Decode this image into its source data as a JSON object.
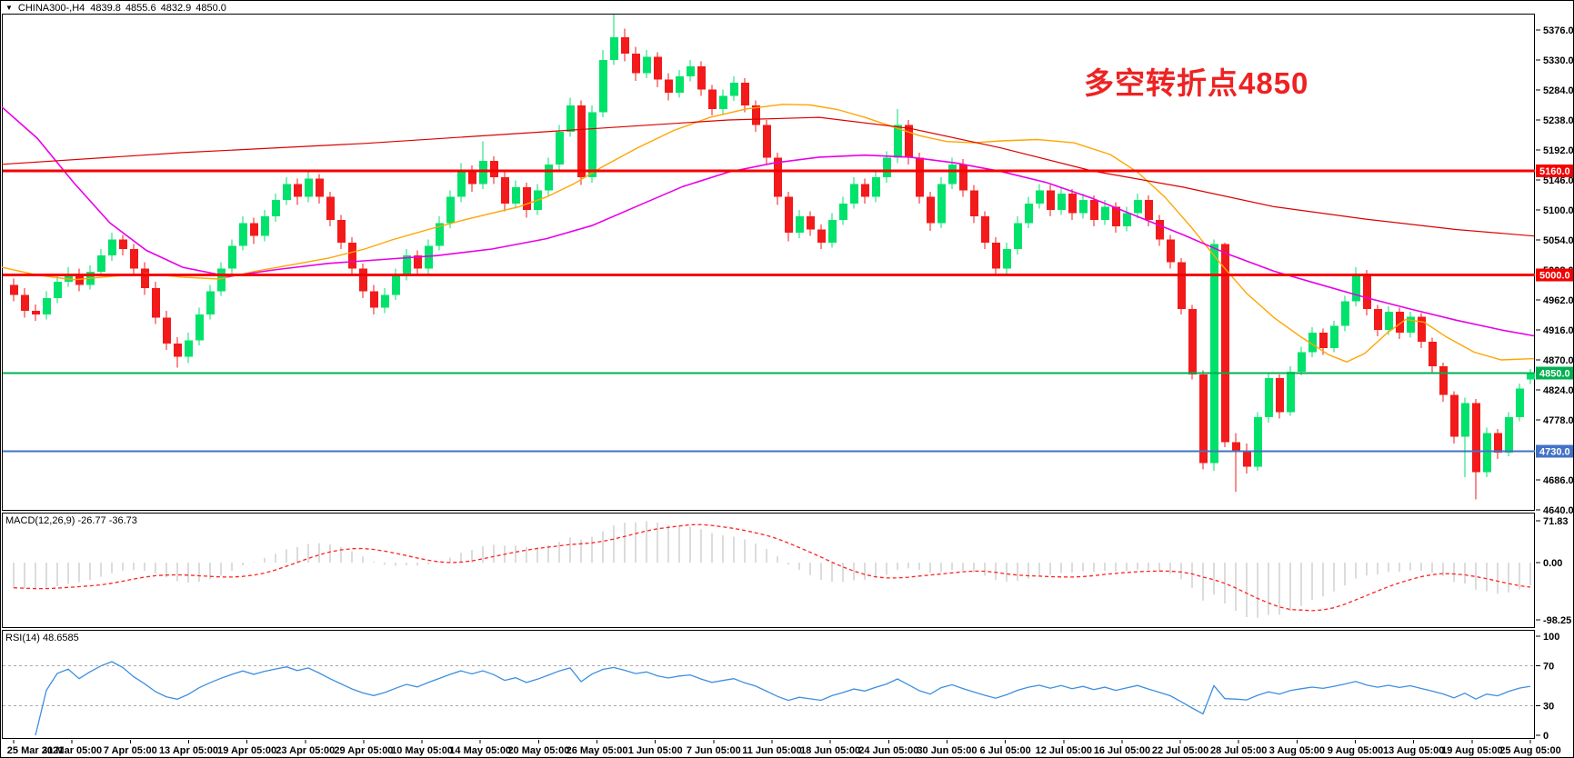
{
  "header": {
    "dropdown_arrow": "▼",
    "symbol_period": "CHINA300-,H4",
    "open": "4839.8",
    "high": "4855.6",
    "low": "4832.9",
    "close": "4850.0"
  },
  "annotation": {
    "text": "多空转折点4850",
    "color": "#ee2222"
  },
  "colors": {
    "background": "#ffffff",
    "frame": "#000000",
    "bull": "#00e26b",
    "bear": "#f21a1a",
    "ma_fast_orange": "#ffa500",
    "ma_mid_magenta": "#e800e8",
    "ma_slow_red": "#dd0000",
    "hline_red": "#f50000",
    "hline_green": "#00b050",
    "hline_blue": "#4472c4",
    "macd_histogram": "#c4c4c4",
    "macd_signal": "#ff2222",
    "rsi_line": "#3d8fe0",
    "level_dash": "#aaaaaa",
    "axis_text": "#000000",
    "badge_text": "#ffffff"
  },
  "chart_data": {
    "type": "candlestick",
    "symbol": "CHINA300-",
    "timeframe": "H4",
    "price_range": [
      4640,
      5400
    ],
    "price_axis": {
      "ticks": [
        5376,
        5330,
        5284,
        5238,
        5192,
        5146,
        5100,
        5054,
        5008,
        4962,
        4916,
        4870,
        4824,
        4778,
        4732,
        4686,
        4640
      ],
      "badges": [
        {
          "text": "5160.0",
          "price": 5160,
          "bg": "#f50000"
        },
        {
          "text": "5000.0",
          "price": 5000,
          "bg": "#f50000"
        },
        {
          "text": "4850.0",
          "price": 4850,
          "bg": "#00b050"
        },
        {
          "text": "4730.0",
          "price": 4730,
          "bg": "#4472c4"
        }
      ]
    },
    "hlines": [
      {
        "price": 5160,
        "color": "#f50000",
        "width": 3
      },
      {
        "price": 5000,
        "color": "#f50000",
        "width": 3
      },
      {
        "price": 4850,
        "color": "#00b050",
        "width": 2
      },
      {
        "price": 4730,
        "color": "#4472c4",
        "width": 2
      }
    ],
    "time_axis": {
      "labels": [
        "25 Mar 2021",
        "31 Mar 05:00",
        "7 Apr 05:00",
        "13 Apr 05:00",
        "19 Apr 05:00",
        "23 Apr 05:00",
        "29 Apr 05:00",
        "10 May 05:00",
        "14 May 05:00",
        "20 May 05:00",
        "26 May 05:00",
        "1 Jun 05:00",
        "7 Jun 05:00",
        "11 Jun 05:00",
        "18 Jun 05:00",
        "24 Jun 05:00",
        "30 Jun 05:00",
        "6 Jul 05:00",
        "12 Jul 05:00",
        "16 Jul 05:00",
        "22 Jul 05:00",
        "28 Jul 05:00",
        "3 Aug 05:00",
        "9 Aug 05:00",
        "13 Aug 05:00",
        "19 Aug 05:00",
        "25 Aug 05:00"
      ]
    },
    "candles": [
      [
        4985,
        4995,
        4960,
        4970
      ],
      [
        4970,
        4980,
        4935,
        4945
      ],
      [
        4945,
        4955,
        4930,
        4940
      ],
      [
        4940,
        4975,
        4932,
        4965
      ],
      [
        4965,
        5000,
        4957,
        4990
      ],
      [
        4990,
        5012,
        4982,
        5000
      ],
      [
        5000,
        5010,
        4975,
        4985
      ],
      [
        4985,
        5015,
        4978,
        5005
      ],
      [
        5005,
        5040,
        4998,
        5030
      ],
      [
        5030,
        5065,
        5022,
        5055
      ],
      [
        5055,
        5062,
        5030,
        5040
      ],
      [
        5040,
        5048,
        5000,
        5010
      ],
      [
        5010,
        5020,
        4970,
        4980
      ],
      [
        4980,
        4990,
        4925,
        4935
      ],
      [
        4935,
        4945,
        4885,
        4895
      ],
      [
        4895,
        4905,
        4858,
        4875
      ],
      [
        4875,
        4912,
        4865,
        4900
      ],
      [
        4900,
        4950,
        4892,
        4940
      ],
      [
        4940,
        4985,
        4932,
        4975
      ],
      [
        4975,
        5020,
        4968,
        5010
      ],
      [
        5010,
        5055,
        5002,
        5045
      ],
      [
        5045,
        5090,
        5038,
        5080
      ],
      [
        5080,
        5088,
        5048,
        5060
      ],
      [
        5060,
        5100,
        5052,
        5090
      ],
      [
        5090,
        5125,
        5082,
        5115
      ],
      [
        5115,
        5150,
        5108,
        5140
      ],
      [
        5140,
        5148,
        5108,
        5120
      ],
      [
        5120,
        5158,
        5112,
        5148
      ],
      [
        5148,
        5155,
        5110,
        5120
      ],
      [
        5120,
        5128,
        5075,
        5085
      ],
      [
        5085,
        5092,
        5040,
        5050
      ],
      [
        5050,
        5058,
        5000,
        5010
      ],
      [
        5010,
        5018,
        4965,
        4975
      ],
      [
        4975,
        4985,
        4940,
        4950
      ],
      [
        4950,
        4980,
        4942,
        4970
      ],
      [
        4970,
        5010,
        4962,
        5000
      ],
      [
        5000,
        5040,
        4992,
        5030
      ],
      [
        5030,
        5038,
        5000,
        5010
      ],
      [
        5010,
        5055,
        5002,
        5045
      ],
      [
        5045,
        5090,
        5038,
        5080
      ],
      [
        5080,
        5130,
        5072,
        5120
      ],
      [
        5120,
        5172,
        5112,
        5160
      ],
      [
        5160,
        5168,
        5128,
        5140
      ],
      [
        5140,
        5205,
        5132,
        5175
      ],
      [
        5175,
        5182,
        5140,
        5150
      ],
      [
        5150,
        5158,
        5098,
        5110
      ],
      [
        5110,
        5145,
        5102,
        5135
      ],
      [
        5135,
        5142,
        5088,
        5100
      ],
      [
        5100,
        5140,
        5092,
        5130
      ],
      [
        5130,
        5180,
        5122,
        5170
      ],
      [
        5170,
        5230,
        5162,
        5220
      ],
      [
        5220,
        5272,
        5212,
        5260
      ],
      [
        5260,
        5268,
        5138,
        5150
      ],
      [
        5150,
        5260,
        5142,
        5250
      ],
      [
        5250,
        5345,
        5242,
        5330
      ],
      [
        5330,
        5400,
        5322,
        5365
      ],
      [
        5365,
        5378,
        5328,
        5340
      ],
      [
        5340,
        5350,
        5298,
        5310
      ],
      [
        5310,
        5345,
        5302,
        5335
      ],
      [
        5335,
        5342,
        5288,
        5300
      ],
      [
        5300,
        5310,
        5268,
        5280
      ],
      [
        5280,
        5315,
        5272,
        5305
      ],
      [
        5305,
        5330,
        5297,
        5320
      ],
      [
        5320,
        5328,
        5275,
        5285
      ],
      [
        5285,
        5292,
        5245,
        5255
      ],
      [
        5255,
        5285,
        5247,
        5275
      ],
      [
        5275,
        5305,
        5267,
        5295
      ],
      [
        5295,
        5302,
        5250,
        5260
      ],
      [
        5260,
        5268,
        5220,
        5230
      ],
      [
        5230,
        5238,
        5170,
        5180
      ],
      [
        5180,
        5188,
        5108,
        5120
      ],
      [
        5120,
        5128,
        5052,
        5065
      ],
      [
        5065,
        5100,
        5057,
        5090
      ],
      [
        5090,
        5098,
        5060,
        5070
      ],
      [
        5070,
        5078,
        5040,
        5050
      ],
      [
        5050,
        5095,
        5042,
        5085
      ],
      [
        5085,
        5120,
        5077,
        5110
      ],
      [
        5110,
        5150,
        5102,
        5140
      ],
      [
        5140,
        5148,
        5110,
        5120
      ],
      [
        5120,
        5160,
        5112,
        5150
      ],
      [
        5150,
        5190,
        5142,
        5180
      ],
      [
        5180,
        5255,
        5172,
        5230
      ],
      [
        5230,
        5238,
        5170,
        5180
      ],
      [
        5180,
        5188,
        5110,
        5120
      ],
      [
        5120,
        5128,
        5068,
        5080
      ],
      [
        5080,
        5150,
        5072,
        5140
      ],
      [
        5140,
        5180,
        5132,
        5170
      ],
      [
        5170,
        5178,
        5120,
        5130
      ],
      [
        5130,
        5138,
        5080,
        5090
      ],
      [
        5090,
        5098,
        5040,
        5050
      ],
      [
        5050,
        5058,
        4998,
        5010
      ],
      [
        5010,
        5050,
        5000,
        5040
      ],
      [
        5040,
        5090,
        5032,
        5080
      ],
      [
        5080,
        5120,
        5072,
        5110
      ],
      [
        5110,
        5140,
        5102,
        5130
      ],
      [
        5130,
        5138,
        5090,
        5100
      ],
      [
        5100,
        5135,
        5092,
        5125
      ],
      [
        5125,
        5132,
        5085,
        5095
      ],
      [
        5095,
        5125,
        5087,
        5115
      ],
      [
        5115,
        5122,
        5075,
        5085
      ],
      [
        5085,
        5115,
        5077,
        5105
      ],
      [
        5105,
        5112,
        5065,
        5075
      ],
      [
        5075,
        5105,
        5067,
        5095
      ],
      [
        5095,
        5125,
        5087,
        5115
      ],
      [
        5115,
        5122,
        5075,
        5085
      ],
      [
        5085,
        5092,
        5045,
        5055
      ],
      [
        5055,
        5062,
        5010,
        5020
      ],
      [
        5020,
        5026,
        4940,
        4948
      ],
      [
        4948,
        4954,
        4840,
        4848
      ],
      [
        4848,
        4854,
        4702,
        4712
      ],
      [
        4712,
        5055,
        4700,
        5048
      ],
      [
        5048,
        5050,
        4736,
        4744
      ],
      [
        4744,
        4758,
        4668,
        4730
      ],
      [
        4730,
        4742,
        4696,
        4706
      ],
      [
        4706,
        4790,
        4700,
        4782
      ],
      [
        4782,
        4850,
        4774,
        4842
      ],
      [
        4842,
        4848,
        4780,
        4790
      ],
      [
        4790,
        4860,
        4784,
        4852
      ],
      [
        4852,
        4890,
        4846,
        4882
      ],
      [
        4882,
        4920,
        4874,
        4912
      ],
      [
        4912,
        4918,
        4878,
        4888
      ],
      [
        4888,
        4930,
        4882,
        4922
      ],
      [
        4922,
        4968,
        4914,
        4960
      ],
      [
        4960,
        5012,
        4952,
        5002
      ],
      [
        5002,
        5008,
        4938,
        4948
      ],
      [
        4948,
        4954,
        4906,
        4916
      ],
      [
        4916,
        4952,
        4908,
        4944
      ],
      [
        4944,
        4950,
        4902,
        4912
      ],
      [
        4912,
        4944,
        4904,
        4936
      ],
      [
        4936,
        4942,
        4888,
        4898
      ],
      [
        4898,
        4904,
        4850,
        4860
      ],
      [
        4860,
        4866,
        4806,
        4816
      ],
      [
        4816,
        4822,
        4742,
        4752
      ],
      [
        4752,
        4812,
        4690,
        4804
      ],
      [
        4804,
        4810,
        4656,
        4698
      ],
      [
        4698,
        4766,
        4690,
        4758
      ],
      [
        4758,
        4764,
        4718,
        4728
      ],
      [
        4728,
        4790,
        4722,
        4782
      ],
      [
        4782,
        4834,
        4776,
        4826
      ],
      [
        4840,
        4856,
        4833,
        4850
      ]
    ],
    "overlays": {
      "ma_fast_orange": [
        [
          1,
          5012
        ],
        [
          40,
          5000
        ],
        [
          80,
          4993
        ],
        [
          120,
          4998
        ],
        [
          160,
          5002
        ],
        [
          200,
          4997
        ],
        [
          240,
          4994
        ],
        [
          280,
          5006
        ],
        [
          320,
          5016
        ],
        [
          360,
          5026
        ],
        [
          400,
          5040
        ],
        [
          430,
          5054
        ],
        [
          470,
          5070
        ],
        [
          510,
          5085
        ],
        [
          540,
          5095
        ],
        [
          570,
          5105
        ],
        [
          600,
          5120
        ],
        [
          630,
          5140
        ],
        [
          660,
          5165
        ],
        [
          700,
          5195
        ],
        [
          740,
          5222
        ],
        [
          780,
          5242
        ],
        [
          820,
          5255
        ],
        [
          860,
          5262
        ],
        [
          890,
          5261
        ],
        [
          920,
          5254
        ],
        [
          950,
          5242
        ],
        [
          980,
          5228
        ],
        [
          1010,
          5214
        ],
        [
          1040,
          5205
        ],
        [
          1070,
          5203
        ],
        [
          1100,
          5206
        ],
        [
          1140,
          5208
        ],
        [
          1180,
          5203
        ],
        [
          1220,
          5185
        ],
        [
          1250,
          5158
        ],
        [
          1280,
          5120
        ],
        [
          1310,
          5072
        ],
        [
          1340,
          5020
        ],
        [
          1370,
          4972
        ],
        [
          1400,
          4935
        ],
        [
          1430,
          4905
        ],
        [
          1460,
          4878
        ],
        [
          1480,
          4867
        ],
        [
          1500,
          4880
        ],
        [
          1525,
          4912
        ],
        [
          1545,
          4932
        ],
        [
          1565,
          4928
        ],
        [
          1590,
          4905
        ],
        [
          1620,
          4882
        ],
        [
          1650,
          4870
        ],
        [
          1686,
          4872
        ]
      ],
      "ma_mid_magenta": [
        [
          1,
          5258
        ],
        [
          40,
          5210
        ],
        [
          80,
          5142
        ],
        [
          120,
          5080
        ],
        [
          160,
          5038
        ],
        [
          200,
          5012
        ],
        [
          250,
          4998
        ],
        [
          300,
          5008
        ],
        [
          360,
          5018
        ],
        [
          420,
          5024
        ],
        [
          480,
          5030
        ],
        [
          540,
          5040
        ],
        [
          600,
          5056
        ],
        [
          650,
          5076
        ],
        [
          700,
          5106
        ],
        [
          750,
          5136
        ],
        [
          800,
          5158
        ],
        [
          850,
          5172
        ],
        [
          900,
          5181
        ],
        [
          950,
          5184
        ],
        [
          1000,
          5181
        ],
        [
          1050,
          5172
        ],
        [
          1100,
          5159
        ],
        [
          1150,
          5142
        ],
        [
          1200,
          5118
        ],
        [
          1250,
          5090
        ],
        [
          1300,
          5062
        ],
        [
          1350,
          5032
        ],
        [
          1400,
          5006
        ],
        [
          1450,
          4986
        ],
        [
          1500,
          4966
        ],
        [
          1550,
          4948
        ],
        [
          1600,
          4931
        ],
        [
          1650,
          4916
        ],
        [
          1686,
          4907
        ]
      ],
      "ma_slow_red": [
        [
          1,
          5170
        ],
        [
          200,
          5188
        ],
        [
          400,
          5202
        ],
        [
          600,
          5220
        ],
        [
          800,
          5238
        ],
        [
          900,
          5242
        ],
        [
          1000,
          5225
        ],
        [
          1100,
          5195
        ],
        [
          1200,
          5160
        ],
        [
          1300,
          5135
        ],
        [
          1400,
          5105
        ],
        [
          1500,
          5086
        ],
        [
          1600,
          5070
        ],
        [
          1686,
          5060
        ]
      ]
    },
    "indicators": {
      "macd": {
        "label": "MACD(12,26,9)",
        "values_label": "-26.77 -36.73",
        "params": [
          12,
          26,
          9
        ],
        "axis_values": [
          71.83,
          0,
          -98.25
        ],
        "axis_labels": [
          "71.83",
          "0.00",
          "-98.25"
        ]
      },
      "rsi": {
        "label": "RSI(14)",
        "value_label": "48.6585",
        "period": 14,
        "axis_values": [
          100,
          70,
          30,
          0
        ],
        "axis_labels": [
          "100",
          "70",
          "30",
          "0"
        ],
        "levels": [
          70,
          30
        ]
      }
    }
  }
}
